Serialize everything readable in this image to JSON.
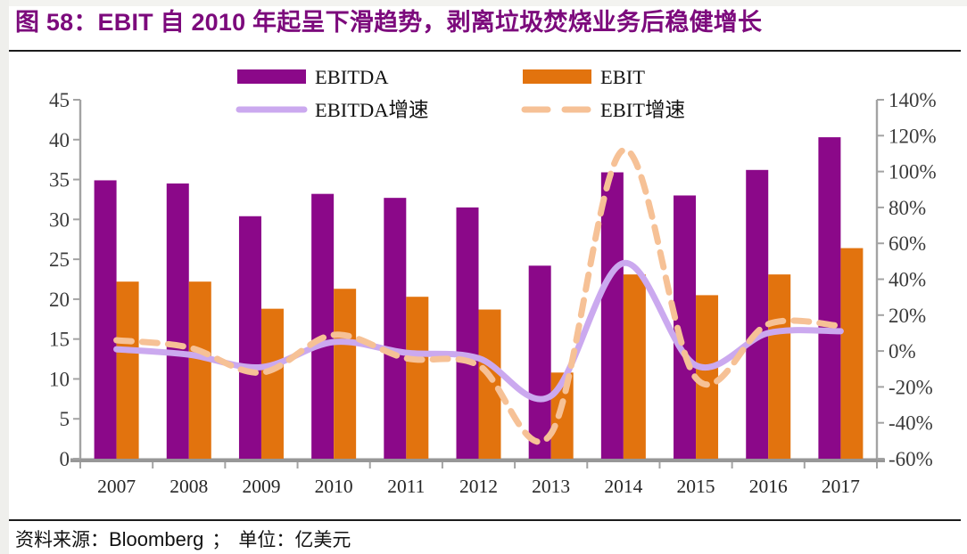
{
  "page": {
    "header": {
      "figure_title": "图 58：EBIT 自 2010 年起呈下滑趋势，剥离垃圾焚烧业务后稳健增长"
    },
    "footer": {
      "source_label": "资料来源：",
      "source": "Bloomberg",
      "separator": "；",
      "unit_label": "单位：",
      "unit": "亿美元"
    }
  },
  "colors": {
    "title": "#7c0a7c",
    "axis_line": "#a3a3a3",
    "baseline": "#979797",
    "tick_label": "#3b3b3b",
    "year_label": "#262626",
    "legend_label": "#111111"
  },
  "chart_data": {
    "type": "bar",
    "subtype": "bar+line combo, dual axis",
    "categories": [
      "2007",
      "2008",
      "2009",
      "2010",
      "2011",
      "2012",
      "2013",
      "2014",
      "2015",
      "2016",
      "2017"
    ],
    "series": [
      {
        "name": "EBITDA",
        "slug": "ebitda",
        "kind": "bar",
        "axis": "left",
        "color": "#8b0889",
        "values": [
          34.9,
          34.5,
          30.4,
          33.2,
          32.7,
          31.5,
          24.2,
          35.9,
          33.0,
          36.2,
          40.3
        ]
      },
      {
        "name": "EBIT",
        "slug": "ebit",
        "kind": "bar",
        "axis": "left",
        "color": "#e2730e",
        "values": [
          22.2,
          22.2,
          18.8,
          21.3,
          20.3,
          18.7,
          10.8,
          23.1,
          20.5,
          23.1,
          26.4
        ]
      },
      {
        "name": "EBITDA增速",
        "slug": "ebitda-growth",
        "kind": "line",
        "style": "solid",
        "axis": "right",
        "color": "#cba9ef",
        "values": [
          1,
          -2,
          -9,
          5,
          -1,
          -4,
          -25,
          49,
          -8,
          10,
          11
        ]
      },
      {
        "name": "EBIT增速",
        "slug": "ebit-growth",
        "kind": "line",
        "style": "dashed",
        "axis": "right",
        "color": "#f6c196",
        "values": [
          6,
          2,
          -12,
          9,
          -4,
          -8,
          -46,
          112,
          -15,
          15,
          14
        ]
      }
    ],
    "left_axis": {
      "min": 0,
      "max": 45,
      "step": 5,
      "tick_labels": [
        "45",
        "40",
        "35",
        "30",
        "25",
        "20",
        "15",
        "10",
        "5",
        "0"
      ]
    },
    "right_axis": {
      "min": -60,
      "max": 140,
      "step": 20,
      "format": "percent",
      "tick_labels": [
        "140%",
        "120%",
        "100%",
        "80%",
        "60%",
        "40%",
        "20%",
        "0%",
        "-20%",
        "-40%",
        "-60%"
      ]
    },
    "legend": {
      "position": "top",
      "rows": 2
    },
    "grid": false,
    "unit_note": "亿美元",
    "title": "图 58：EBIT 自 2010 年起呈下滑趋势，剥离垃圾焚烧业务后稳健增长"
  }
}
